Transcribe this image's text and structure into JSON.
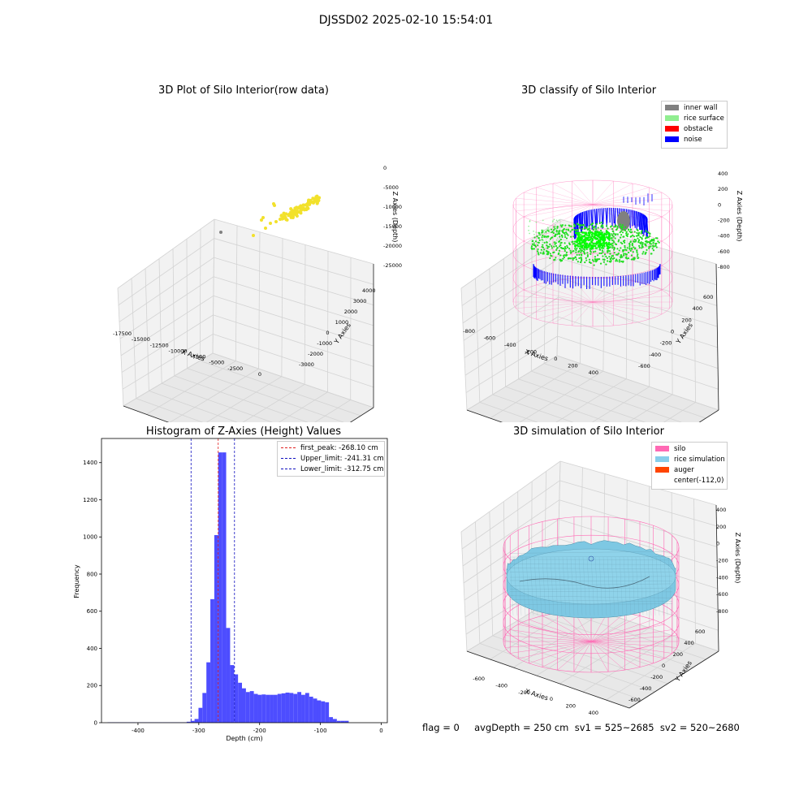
{
  "figure": {
    "suptitle": "DJSSD02 2025-02-10 15:54:01",
    "footer": "flag = 0     avgDepth = 250 cm  sv1 = 525~2685  sv2 = 520~2680"
  },
  "colors": {
    "hist_bar": "#4d4dff",
    "first_peak": "#e02020",
    "limits": "#1010c0",
    "yellow": "#f2e12b",
    "inner_wall": "#808080",
    "rice_surface": "#90ee90",
    "obstacle": "#ff0000",
    "noise": "#0000ff",
    "silo": "#ff69b4",
    "rice_sim": "#7ec8e3",
    "auger": "#ff4500"
  },
  "chart_data": [
    {
      "type": "scatter",
      "title": "3D Plot of Silo Interior(row data)",
      "xlabel": "X Axies",
      "ylabel": "Y Axies",
      "zlabel": "Z Axies (Depth)",
      "x_ticks": [
        "-17500",
        "-15000",
        "-12500",
        "-10000",
        "-7500",
        "-5000",
        "-2500",
        "0"
      ],
      "y_ticks": [
        "-3000",
        "-2000",
        "-1000",
        "0",
        "1000",
        "2000",
        "3000",
        "4000"
      ],
      "z_ticks": [
        "0",
        "-5000",
        "-10000",
        "-15000",
        "-20000",
        "-25000"
      ]
    },
    {
      "type": "scatter",
      "title": "3D classify of Silo Interior",
      "xlabel": "X Axies",
      "ylabel": "Y Axies",
      "zlabel": "Z Axies (Depth)",
      "x_ticks": [
        "-800",
        "-600",
        "-400",
        "-200",
        "0",
        "200",
        "400"
      ],
      "y_ticks": [
        "-600",
        "-400",
        "-200",
        "0",
        "200",
        "400",
        "600"
      ],
      "z_ticks": [
        "400",
        "200",
        "0",
        "-200",
        "-400",
        "-600",
        "-800"
      ],
      "legend": [
        "inner wall",
        "rice surface",
        "obstacle",
        "noise"
      ],
      "legend_position": "top-right"
    },
    {
      "type": "bar",
      "title": "Histogram of Z-Axies (Height) Values",
      "xlabel": "Depth (cm)",
      "ylabel": "Frequency",
      "xlim": [
        -460,
        10
      ],
      "ylim": [
        0,
        1530
      ],
      "x_ticks": [
        -400,
        -300,
        -200,
        -100,
        0
      ],
      "y_ticks": [
        0,
        200,
        400,
        600,
        800,
        1000,
        1200,
        1400
      ],
      "bin_start": -450,
      "bin_width": 6.5,
      "values": [
        2,
        2,
        2,
        2,
        2,
        2,
        2,
        1,
        2,
        2,
        2,
        2,
        2,
        2,
        2,
        2,
        2,
        2,
        2,
        2,
        5,
        10,
        20,
        80,
        160,
        325,
        665,
        1010,
        1455,
        1455,
        510,
        310,
        260,
        215,
        185,
        165,
        170,
        155,
        150,
        152,
        150,
        150,
        150,
        155,
        158,
        162,
        160,
        155,
        165,
        150,
        160,
        140,
        130,
        120,
        115,
        110,
        30,
        20,
        10,
        10,
        10
      ],
      "lines": [
        {
          "label": "first_peak: -268.10 cm",
          "x": -268.1,
          "style": "red"
        },
        {
          "label": "Upper_limit: -241.31 cm",
          "x": -241.31,
          "style": "blue"
        },
        {
          "label": "Lower_limit: -312.75 cm",
          "x": -312.75,
          "style": "blue"
        }
      ],
      "legend_position": "top-right"
    },
    {
      "type": "area",
      "title": "3D simulation of Silo Interior",
      "xlabel": "X Axies",
      "ylabel": "Y Axies",
      "zlabel": "Z Axies (Depth)",
      "x_ticks": [
        "-600",
        "-400",
        "-200",
        "0",
        "200",
        "400"
      ],
      "y_ticks": [
        "-600",
        "-400",
        "-200",
        "0",
        "200",
        "400",
        "600"
      ],
      "z_ticks": [
        "400",
        "200",
        "0",
        "-200",
        "-400",
        "-600",
        "-800"
      ],
      "legend": [
        "silo",
        "rice simulation",
        "auger",
        "center(-112,0)"
      ],
      "legend_position": "top-right"
    }
  ]
}
